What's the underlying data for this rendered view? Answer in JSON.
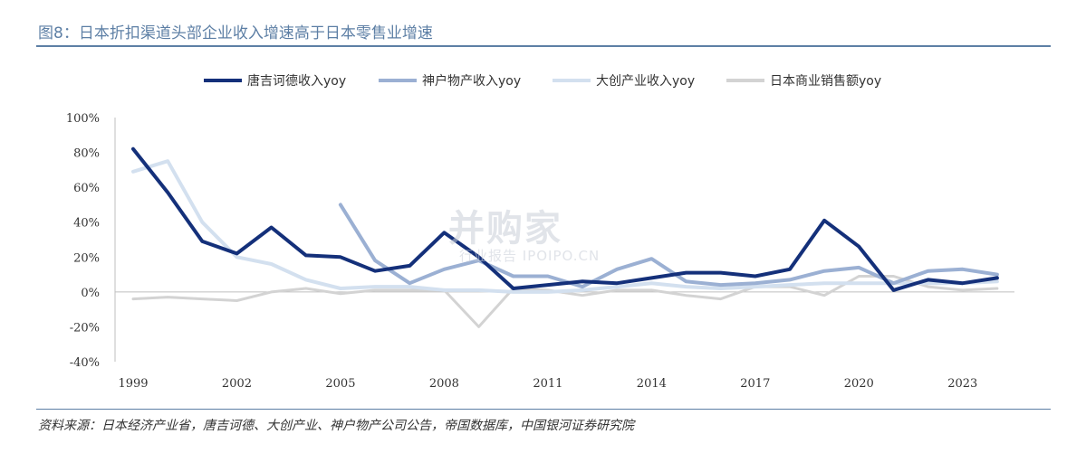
{
  "header": {
    "title": "图8：日本折扣渠道头部企业收入增速高于日本零售业增速",
    "source": "资料来源：日本经济产业省，唐吉诃德、大创产业、神户物产公司公告，帝国数据库，中国银河证券研究院"
  },
  "watermark": {
    "logo": "并购家",
    "subtitle": "行业报告 IPOIPO.CN"
  },
  "colors": {
    "rule": "#5d7fa5",
    "axis": "#bfbfbf",
    "text": "#333333"
  },
  "chart_data": {
    "type": "line",
    "title": "",
    "xlabel": "",
    "ylabel": "",
    "ylim": [
      -40,
      100
    ],
    "xlim": [
      1999,
      2024
    ],
    "yticks": [
      100,
      80,
      60,
      40,
      20,
      0,
      -20,
      -40
    ],
    "ytick_labels": [
      "100%",
      "80%",
      "60%",
      "40%",
      "20%",
      "0%",
      "-20%",
      "-40%"
    ],
    "xticks": [
      1999,
      2002,
      2005,
      2008,
      2011,
      2014,
      2017,
      2020,
      2023
    ],
    "xtick_labels": [
      "1999",
      "2002",
      "2005",
      "2008",
      "2011",
      "2014",
      "2017",
      "2020",
      "2023"
    ],
    "grid": false,
    "legend_position": "top",
    "x": [
      1999,
      2000,
      2001,
      2002,
      2003,
      2004,
      2005,
      2006,
      2007,
      2008,
      2009,
      2010,
      2011,
      2012,
      2013,
      2014,
      2015,
      2016,
      2017,
      2018,
      2019,
      2020,
      2021,
      2022,
      2023,
      2024
    ],
    "series": [
      {
        "name": "唐吉诃德收入yoy",
        "color": "#14307a",
        "width": 4,
        "values": [
          82,
          57,
          29,
          22,
          37,
          21,
          20,
          12,
          15,
          34,
          20,
          2,
          4,
          6,
          5,
          8,
          11,
          11,
          9,
          13,
          41,
          26,
          1,
          7,
          5,
          8
        ]
      },
      {
        "name": "神户物产收入yoy",
        "color": "#9bb0d3",
        "width": 4,
        "values": [
          null,
          null,
          null,
          null,
          null,
          null,
          50,
          18,
          5,
          13,
          18,
          9,
          9,
          3,
          13,
          19,
          6,
          4,
          5,
          7,
          12,
          14,
          5,
          12,
          13,
          10
        ]
      },
      {
        "name": "大创产业收入yoy",
        "color": "#d3e0ef",
        "width": 4,
        "values": [
          69,
          75,
          40,
          20,
          16,
          7,
          2,
          3,
          3,
          1,
          1,
          0,
          0,
          1,
          3,
          5,
          3,
          2,
          3,
          4,
          5,
          5,
          5,
          5,
          5,
          6
        ]
      },
      {
        "name": "日本商业销售额yoy",
        "color": "#d3d3d3",
        "width": 3,
        "values": [
          -4,
          -3,
          -4,
          -5,
          0,
          2,
          -1,
          1,
          1,
          1,
          -20,
          2,
          1,
          -2,
          1,
          1,
          -2,
          -4,
          3,
          3,
          -2,
          9,
          9,
          3,
          1,
          2
        ]
      }
    ]
  }
}
